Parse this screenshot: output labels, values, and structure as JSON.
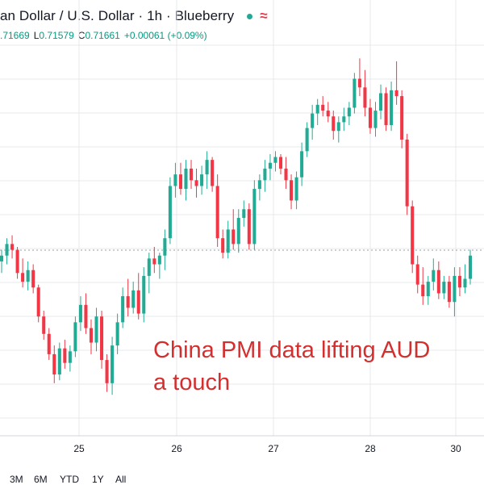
{
  "header": {
    "title": "an Dollar / U.S. Dollar · 1h · Blueberry",
    "wave_symbol": "≈",
    "ohlc": {
      "open_value": ".71669",
      "low_label": "L",
      "low_value": "0.71579",
      "close_label": "C",
      "close_value": "0.71661",
      "change": "+0.00061 (+0.09%)"
    }
  },
  "x_axis": {
    "labels": [
      "25",
      "26",
      "27",
      "28",
      "30"
    ]
  },
  "annotation": {
    "line1": "China PMI data lifting AUD",
    "line2": "a touch"
  },
  "range_bar": {
    "items": [
      "3M",
      "6M",
      "YTD",
      "1Y",
      "All"
    ]
  },
  "colors": {
    "up": "#22ab94",
    "down": "#f23645",
    "annotation": "#d32f2f",
    "grid": "#e6e9ee"
  },
  "chart_data": {
    "type": "candlestick",
    "x_tick_labels": [
      "25",
      "26",
      "27",
      "28",
      "30"
    ],
    "series": [
      {
        "ohlc": [
          [
            0.7164,
            0.7168,
            0.716,
            0.7166
          ],
          [
            0.7166,
            0.7172,
            0.7163,
            0.717
          ],
          [
            0.717,
            0.7173,
            0.7165,
            0.7168
          ],
          [
            0.7168,
            0.7169,
            0.7158,
            0.716
          ],
          [
            0.716,
            0.7165,
            0.7155,
            0.7157
          ],
          [
            0.7157,
            0.7164,
            0.7154,
            0.7161
          ],
          [
            0.7161,
            0.7163,
            0.7153,
            0.7155
          ],
          [
            0.7155,
            0.7156,
            0.7143,
            0.7145
          ],
          [
            0.7145,
            0.7147,
            0.7137,
            0.7139
          ],
          [
            0.7139,
            0.7141,
            0.713,
            0.7132
          ],
          [
            0.7132,
            0.7135,
            0.7122,
            0.7125
          ],
          [
            0.7125,
            0.7136,
            0.7123,
            0.7134
          ],
          [
            0.7134,
            0.7137,
            0.7127,
            0.7129
          ],
          [
            0.7129,
            0.7135,
            0.7126,
            0.7133
          ],
          [
            0.7133,
            0.7145,
            0.7131,
            0.7143
          ],
          [
            0.7143,
            0.7152,
            0.714,
            0.7149
          ],
          [
            0.7149,
            0.7153,
            0.7139,
            0.7141
          ],
          [
            0.7141,
            0.7144,
            0.7132,
            0.7136
          ],
          [
            0.7136,
            0.7148,
            0.7133,
            0.7145
          ],
          [
            0.7145,
            0.7147,
            0.7127,
            0.713
          ],
          [
            0.713,
            0.7132,
            0.7119,
            0.7122
          ],
          [
            0.7122,
            0.7138,
            0.7118,
            0.7135
          ],
          [
            0.7135,
            0.7146,
            0.7132,
            0.7143
          ],
          [
            0.7143,
            0.7155,
            0.7141,
            0.7152
          ],
          [
            0.7152,
            0.7158,
            0.7145,
            0.7148
          ],
          [
            0.7148,
            0.7157,
            0.7146,
            0.7154
          ],
          [
            0.7154,
            0.716,
            0.7144,
            0.7146
          ],
          [
            0.7146,
            0.7162,
            0.7143,
            0.7159
          ],
          [
            0.7159,
            0.7167,
            0.7153,
            0.7165
          ],
          [
            0.7165,
            0.7169,
            0.716,
            0.7163
          ],
          [
            0.7163,
            0.7167,
            0.7158,
            0.7166
          ],
          [
            0.7166,
            0.7175,
            0.7161,
            0.7172
          ],
          [
            0.7172,
            0.7193,
            0.717,
            0.719
          ],
          [
            0.719,
            0.7198,
            0.7186,
            0.7194
          ],
          [
            0.7194,
            0.7198,
            0.7187,
            0.7189
          ],
          [
            0.7189,
            0.7199,
            0.7185,
            0.7196
          ],
          [
            0.7196,
            0.7199,
            0.7189,
            0.7192
          ],
          [
            0.7192,
            0.7196,
            0.7186,
            0.719
          ],
          [
            0.719,
            0.7197,
            0.7187,
            0.7194
          ],
          [
            0.7194,
            0.7202,
            0.7189,
            0.7199
          ],
          [
            0.7199,
            0.72,
            0.7188,
            0.719
          ],
          [
            0.719,
            0.7194,
            0.7169,
            0.7172
          ],
          [
            0.7172,
            0.7175,
            0.7165,
            0.7167
          ],
          [
            0.7167,
            0.7178,
            0.7165,
            0.7175
          ],
          [
            0.7175,
            0.7182,
            0.7168,
            0.717
          ],
          [
            0.717,
            0.7182,
            0.7167,
            0.7179
          ],
          [
            0.7179,
            0.7185,
            0.7176,
            0.7182
          ],
          [
            0.7182,
            0.7184,
            0.7168,
            0.717
          ],
          [
            0.717,
            0.7192,
            0.7168,
            0.7189
          ],
          [
            0.7189,
            0.7194,
            0.7185,
            0.7192
          ],
          [
            0.7192,
            0.7199,
            0.7188,
            0.7196
          ],
          [
            0.7196,
            0.7201,
            0.7192,
            0.7198
          ],
          [
            0.7198,
            0.7202,
            0.7195,
            0.72
          ],
          [
            0.72,
            0.7201,
            0.7194,
            0.7196
          ],
          [
            0.7196,
            0.72,
            0.7189,
            0.7192
          ],
          [
            0.7192,
            0.7194,
            0.7182,
            0.7185
          ],
          [
            0.7185,
            0.7195,
            0.7182,
            0.7193
          ],
          [
            0.7193,
            0.7205,
            0.719,
            0.7202
          ],
          [
            0.7202,
            0.7212,
            0.72,
            0.721
          ],
          [
            0.721,
            0.7218,
            0.7206,
            0.7215
          ],
          [
            0.7215,
            0.722,
            0.7211,
            0.7218
          ],
          [
            0.7218,
            0.7221,
            0.7214,
            0.7216
          ],
          [
            0.7216,
            0.7219,
            0.7212,
            0.7214
          ],
          [
            0.7214,
            0.7216,
            0.7206,
            0.7209
          ],
          [
            0.7209,
            0.7214,
            0.7205,
            0.7212
          ],
          [
            0.7212,
            0.7217,
            0.7209,
            0.7214
          ],
          [
            0.7214,
            0.7219,
            0.7211,
            0.7217
          ],
          [
            0.7217,
            0.7229,
            0.7215,
            0.7227
          ],
          [
            0.7227,
            0.7234,
            0.7221,
            0.7224
          ],
          [
            0.7224,
            0.723,
            0.7214,
            0.7217
          ],
          [
            0.7217,
            0.722,
            0.7208,
            0.721
          ],
          [
            0.721,
            0.7219,
            0.7207,
            0.7216
          ],
          [
            0.7216,
            0.7225,
            0.7213,
            0.7222
          ],
          [
            0.7222,
            0.7224,
            0.7209,
            0.7211
          ],
          [
            0.7211,
            0.7226,
            0.7209,
            0.7223
          ],
          [
            0.7223,
            0.7233,
            0.7218,
            0.7221
          ],
          [
            0.7221,
            0.7223,
            0.7203,
            0.7206
          ],
          [
            0.7206,
            0.7208,
            0.718,
            0.7183
          ],
          [
            0.7183,
            0.7185,
            0.716,
            0.7163
          ],
          [
            0.7163,
            0.7166,
            0.7153,
            0.7156
          ],
          [
            0.7156,
            0.7162,
            0.7149,
            0.7152
          ],
          [
            0.7152,
            0.7159,
            0.7149,
            0.7157
          ],
          [
            0.7157,
            0.7165,
            0.7154,
            0.7161
          ],
          [
            0.7161,
            0.7164,
            0.7151,
            0.7153
          ],
          [
            0.7153,
            0.7159,
            0.7151,
            0.7157
          ],
          [
            0.7157,
            0.7159,
            0.7148,
            0.715
          ],
          [
            0.715,
            0.7162,
            0.7145,
            0.7159
          ],
          [
            0.7159,
            0.7162,
            0.7152,
            0.7155
          ],
          [
            0.7155,
            0.7163,
            0.7153,
            0.7158
          ],
          [
            0.7158,
            0.7168,
            0.7156,
            0.7166
          ]
        ]
      }
    ]
  }
}
